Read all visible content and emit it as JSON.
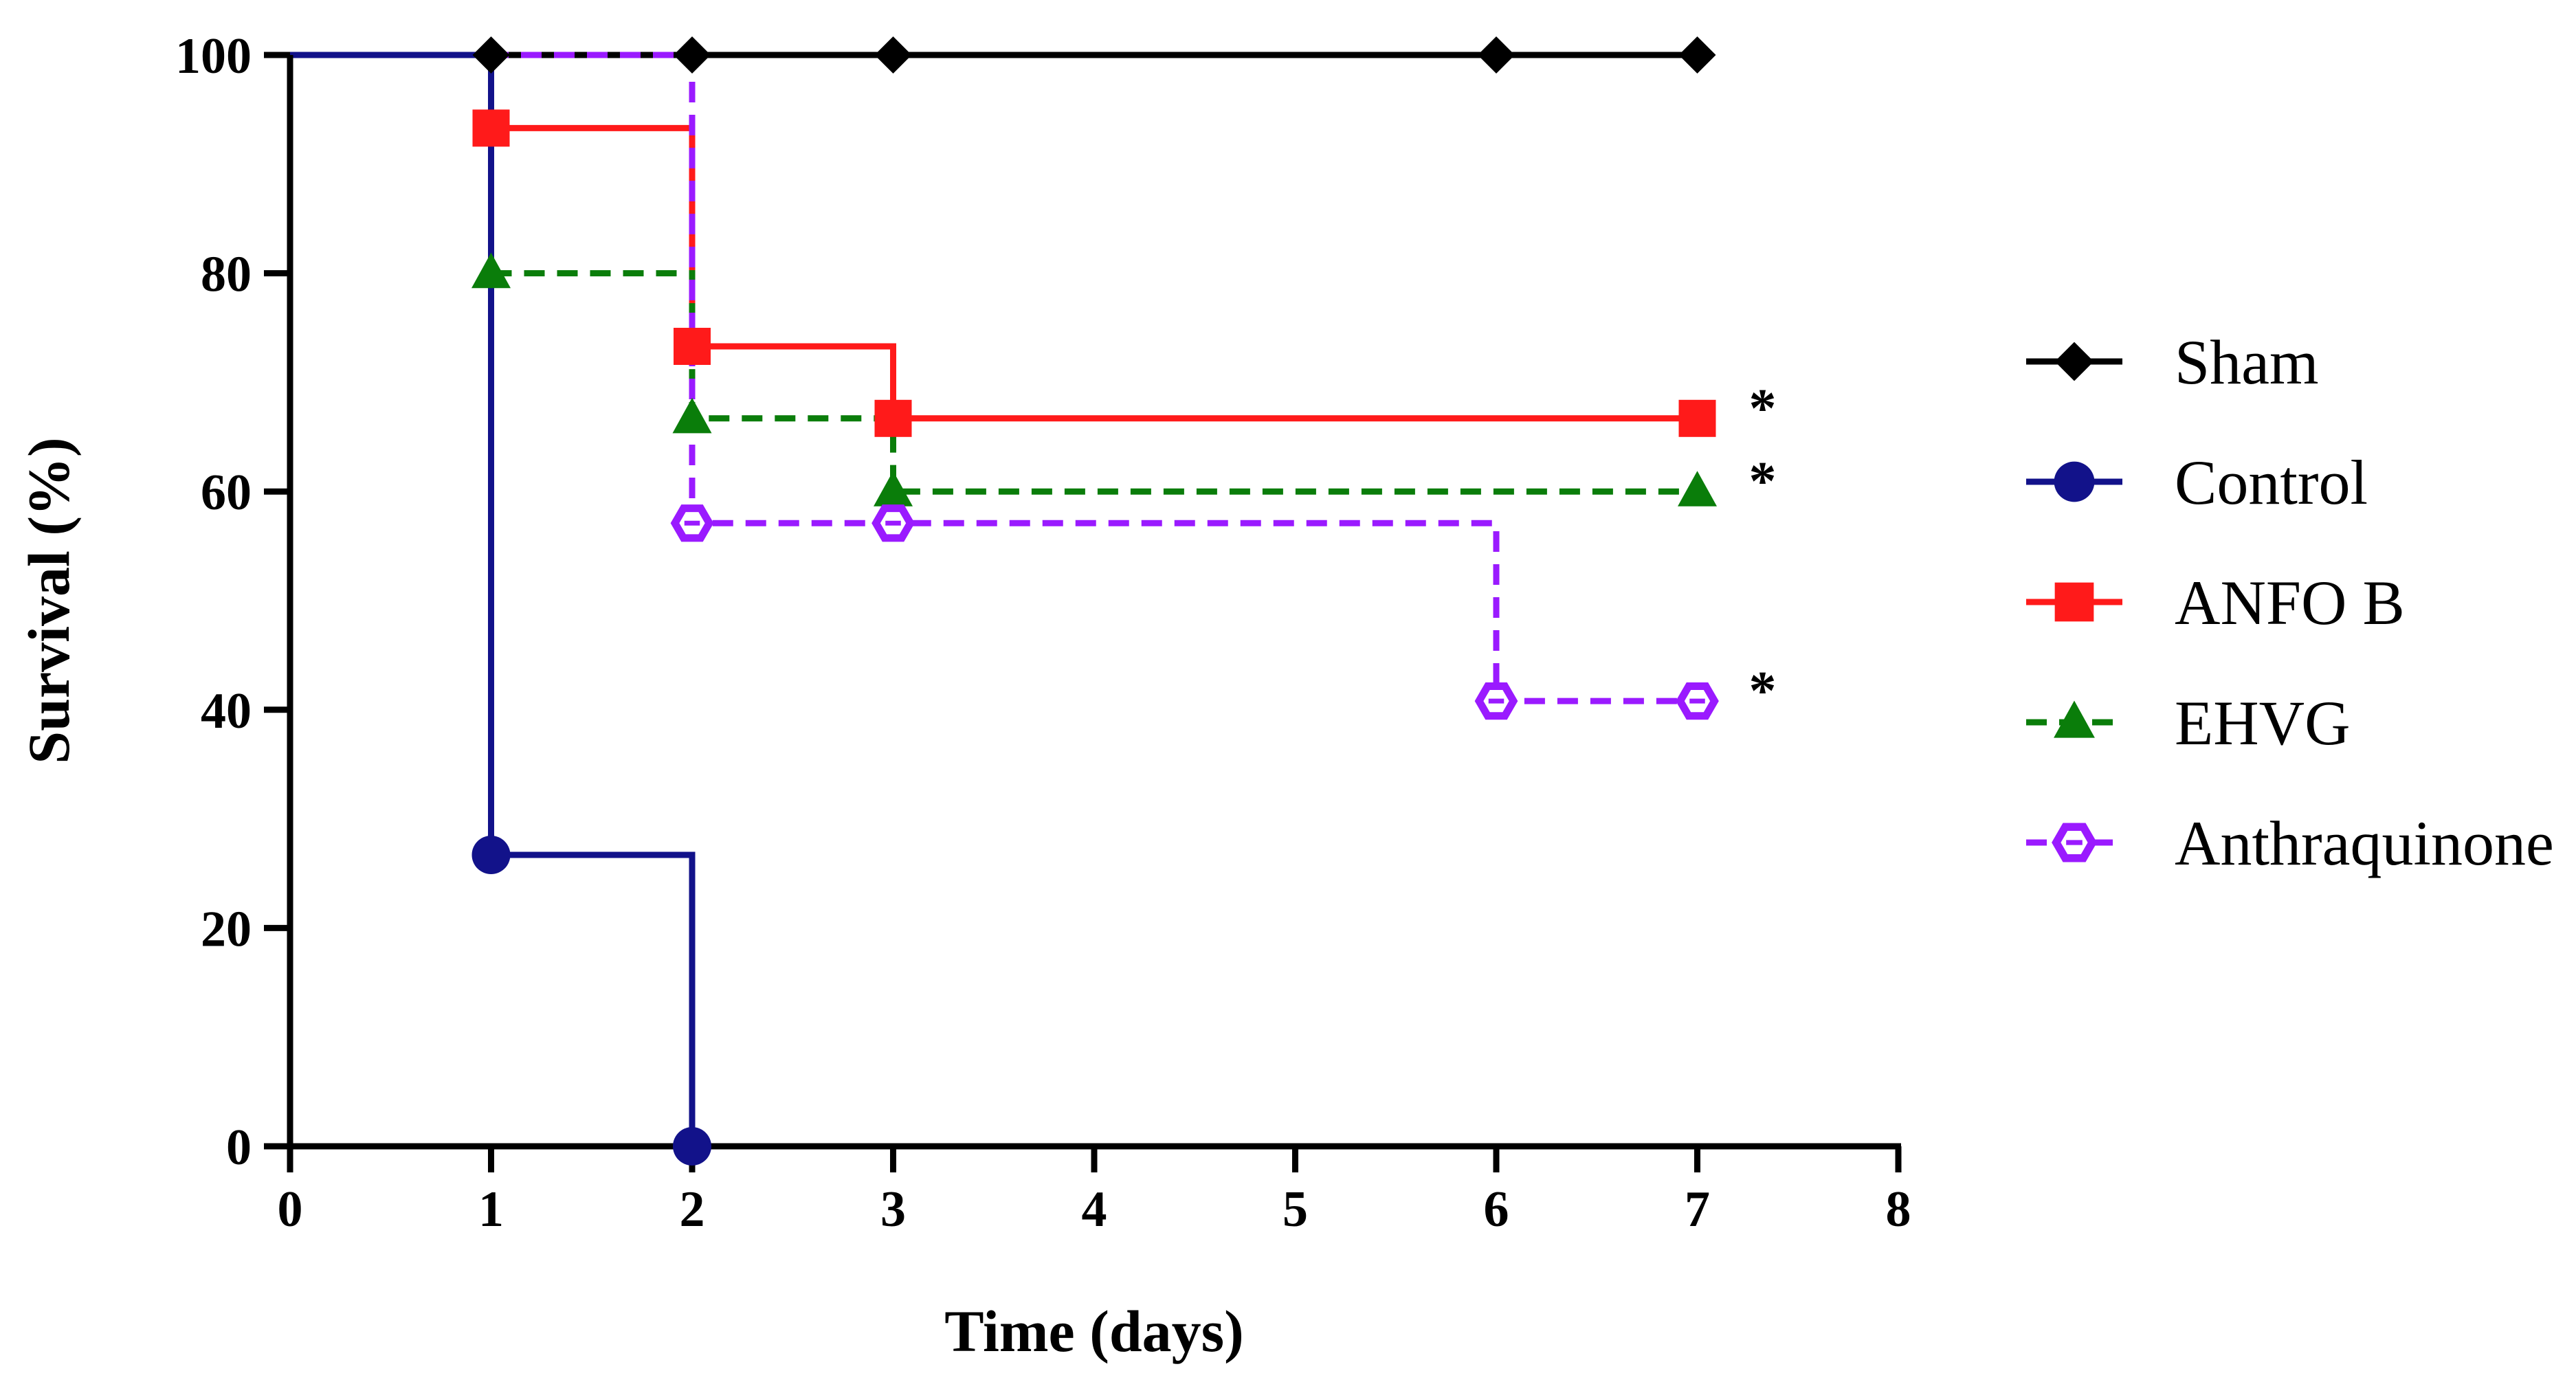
{
  "chart_data": {
    "type": "line",
    "subtype": "kaplan-meier-step",
    "title": "",
    "xlabel": "Time (days)",
    "ylabel": "Survival (%)",
    "xlim": [
      0,
      8
    ],
    "ylim": [
      0,
      100
    ],
    "xticks": [
      0,
      1,
      2,
      3,
      4,
      5,
      6,
      7,
      8
    ],
    "yticks": [
      0,
      20,
      40,
      60,
      80,
      100
    ],
    "grid": false,
    "legend_position": "right",
    "series": [
      {
        "name": "Sham",
        "color": "#000000",
        "dashed": false,
        "marker": "diamond",
        "points": [
          [
            0,
            100
          ],
          [
            1,
            100
          ],
          [
            2,
            100
          ],
          [
            3,
            100
          ],
          [
            6,
            100
          ],
          [
            7,
            100
          ]
        ],
        "marker_x": [
          1,
          2,
          3,
          6,
          7
        ],
        "annotation": ""
      },
      {
        "name": "Control",
        "color": "#12128a",
        "dashed": false,
        "marker": "circle",
        "points": [
          [
            0,
            100
          ],
          [
            1,
            100
          ],
          [
            1,
            26.7
          ],
          [
            2,
            26.7
          ],
          [
            2,
            0
          ]
        ],
        "marker_x": [
          1,
          2
        ],
        "annotation": ""
      },
      {
        "name": "ANFO B",
        "color": "#ff1a1a",
        "dashed": false,
        "marker": "square",
        "points": [
          [
            1,
            93.3
          ],
          [
            2,
            93.3
          ],
          [
            2,
            73.3
          ],
          [
            3,
            73.3
          ],
          [
            3,
            66.7
          ],
          [
            7,
            66.7
          ]
        ],
        "marker_x": [
          1,
          2,
          3,
          7
        ],
        "annotation": "*"
      },
      {
        "name": "EHVG",
        "color": "#0a7d0a",
        "dashed": true,
        "marker": "triangle",
        "points": [
          [
            1,
            80
          ],
          [
            2,
            80
          ],
          [
            2,
            66.7
          ],
          [
            3,
            66.7
          ],
          [
            3,
            60
          ],
          [
            7,
            60
          ]
        ],
        "marker_x": [
          1,
          2,
          3,
          7
        ],
        "annotation": "*"
      },
      {
        "name": "Anthraquinone",
        "color": "#9a1aff",
        "dashed": true,
        "marker": "hexagon-open",
        "points": [
          [
            0,
            100
          ],
          [
            2,
            100
          ],
          [
            2,
            57.1
          ],
          [
            6,
            57.1
          ],
          [
            6,
            40.8
          ],
          [
            7,
            40.8
          ]
        ],
        "marker_x": [
          2,
          3,
          6,
          7
        ],
        "annotation": "*"
      }
    ]
  }
}
